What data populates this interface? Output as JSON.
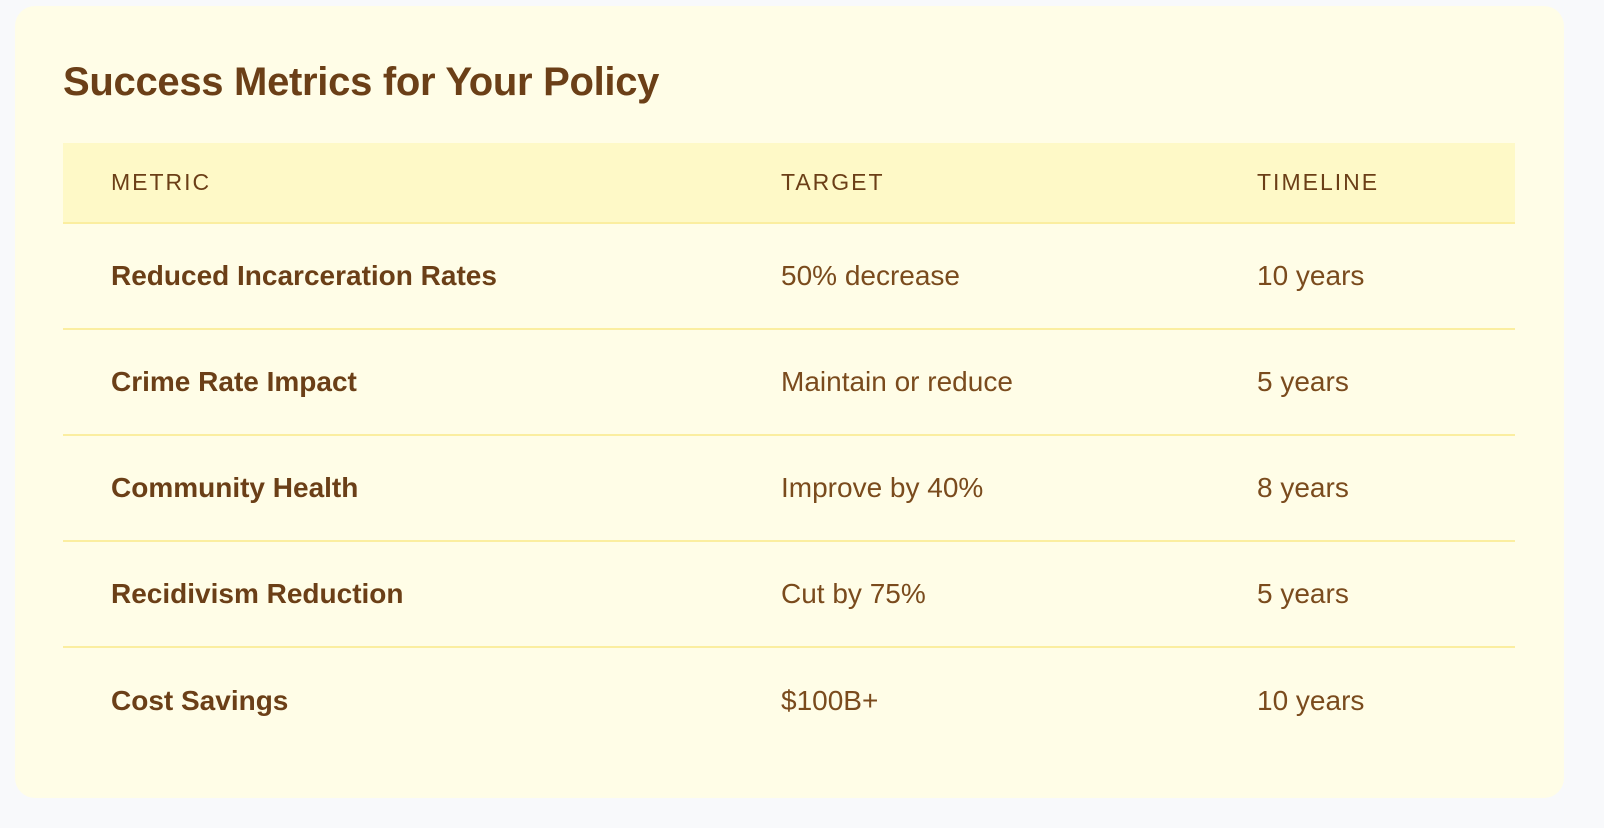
{
  "card": {
    "title": "Success Metrics for Your Policy"
  },
  "table": {
    "headers": [
      "METRIC",
      "TARGET",
      "TIMELINE"
    ],
    "rows": [
      {
        "metric": "Reduced Incarceration Rates",
        "target": "50% decrease",
        "timeline": "10 years"
      },
      {
        "metric": "Crime Rate Impact",
        "target": "Maintain or reduce",
        "timeline": "5 years"
      },
      {
        "metric": "Community Health",
        "target": "Improve by 40%",
        "timeline": "8 years"
      },
      {
        "metric": "Recidivism Reduction",
        "target": "Cut by 75%",
        "timeline": "5 years"
      },
      {
        "metric": "Cost Savings",
        "target": "$100B+",
        "timeline": "10 years"
      }
    ]
  },
  "colors": {
    "page_background": "#f8f9fb",
    "card_background": "#fffde7",
    "header_background": "#fef9c7",
    "row_divider": "#fbeea0",
    "heading_text": "#6b3f17",
    "body_text": "#7a4b1d"
  }
}
